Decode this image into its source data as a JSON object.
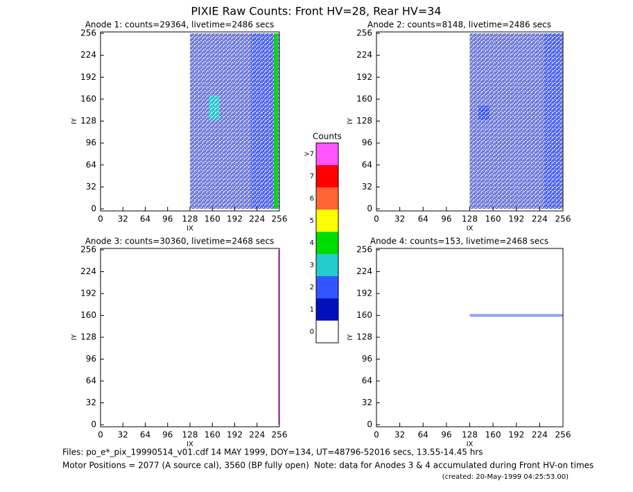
{
  "title": "PIXIE Raw Counts:  Front HV=28, Rear HV=34",
  "chart_data": [
    {
      "type": "heatmap",
      "title": "Anode 1: counts=29364, livetime=2486 secs",
      "xlabel": "IX",
      "ylabel": "IY",
      "xlim": [
        0,
        256
      ],
      "ylim": [
        0,
        256
      ],
      "xticks": [
        0,
        32,
        64,
        96,
        128,
        160,
        192,
        224,
        256
      ],
      "yticks": [
        0,
        32,
        64,
        96,
        128,
        160,
        192,
        224,
        256
      ],
      "regions": [
        {
          "x": [
            128,
            256
          ],
          "y": [
            0,
            256
          ],
          "level": 1
        },
        {
          "x": [
            215,
            250
          ],
          "y": [
            0,
            256
          ],
          "level": 2
        },
        {
          "x": [
            155,
            170
          ],
          "y": [
            130,
            165
          ],
          "level": 3
        },
        {
          "x": [
            248,
            254
          ],
          "y": [
            0,
            256
          ],
          "level": 4
        }
      ]
    },
    {
      "type": "heatmap",
      "title": "Anode 2: counts=8148, livetime=2486 secs",
      "xlabel": "IX",
      "ylabel": "IY",
      "xlim": [
        0,
        256
      ],
      "ylim": [
        0,
        256
      ],
      "xticks": [
        0,
        32,
        64,
        96,
        128,
        160,
        192,
        224,
        256
      ],
      "yticks": [
        0,
        32,
        64,
        96,
        128,
        160,
        192,
        224,
        256
      ],
      "regions": [
        {
          "x": [
            128,
            256
          ],
          "y": [
            0,
            256
          ],
          "level": 1
        },
        {
          "x": [
            230,
            254
          ],
          "y": [
            0,
            256
          ],
          "level": 2
        },
        {
          "x": [
            140,
            155
          ],
          "y": [
            130,
            150
          ],
          "level": 2
        }
      ]
    },
    {
      "type": "heatmap",
      "title": "Anode 3: counts=30360, livetime=2468 secs",
      "xlabel": "IX",
      "ylabel": "IY",
      "xlim": [
        0,
        256
      ],
      "ylim": [
        0,
        256
      ],
      "xticks": [
        0,
        32,
        64,
        96,
        128,
        160,
        192,
        224,
        256
      ],
      "yticks": [
        0,
        32,
        64,
        96,
        128,
        160,
        192,
        224,
        256
      ],
      "regions": [
        {
          "x": [
            254,
            256
          ],
          "y": [
            0,
            256
          ],
          "level": 8
        }
      ]
    },
    {
      "type": "heatmap",
      "title": "Anode 4: counts=153, livetime=2468 secs",
      "xlabel": "IX",
      "ylabel": "IY",
      "xlim": [
        0,
        256
      ],
      "ylim": [
        0,
        256
      ],
      "xticks": [
        0,
        32,
        64,
        96,
        128,
        160,
        192,
        224,
        256
      ],
      "yticks": [
        0,
        32,
        64,
        96,
        128,
        160,
        192,
        224,
        256
      ],
      "regions": [
        {
          "x": [
            128,
            256
          ],
          "y": [
            158,
            162
          ],
          "level": 2
        }
      ]
    }
  ],
  "colorbar": {
    "title": "Counts",
    "ticks": [
      0,
      1,
      2,
      3,
      4,
      5,
      6,
      7,
      {
        "value": 8,
        "label": ">7"
      }
    ],
    "colors": [
      "#ffffff",
      "#0011bb",
      "#3355ff",
      "#22cccc",
      "#00dd00",
      "#ffff00",
      "#ff6633",
      "#ff0000",
      "#ff55ff"
    ]
  },
  "footer": {
    "files": "Files: po_e*_pix_19990514_v01.cdf    14 MAY 1999, DOY=134, UT=48796-52016 secs, 13.55-14.45 hrs",
    "motor": "Motor Positions = 2077 (A source cal), 3560 (BP fully open)",
    "note": "Note: data for Anodes 3 & 4 accumulated during Front HV-on times",
    "created": "(created: 20-May-1999 04:25:53.00)"
  }
}
